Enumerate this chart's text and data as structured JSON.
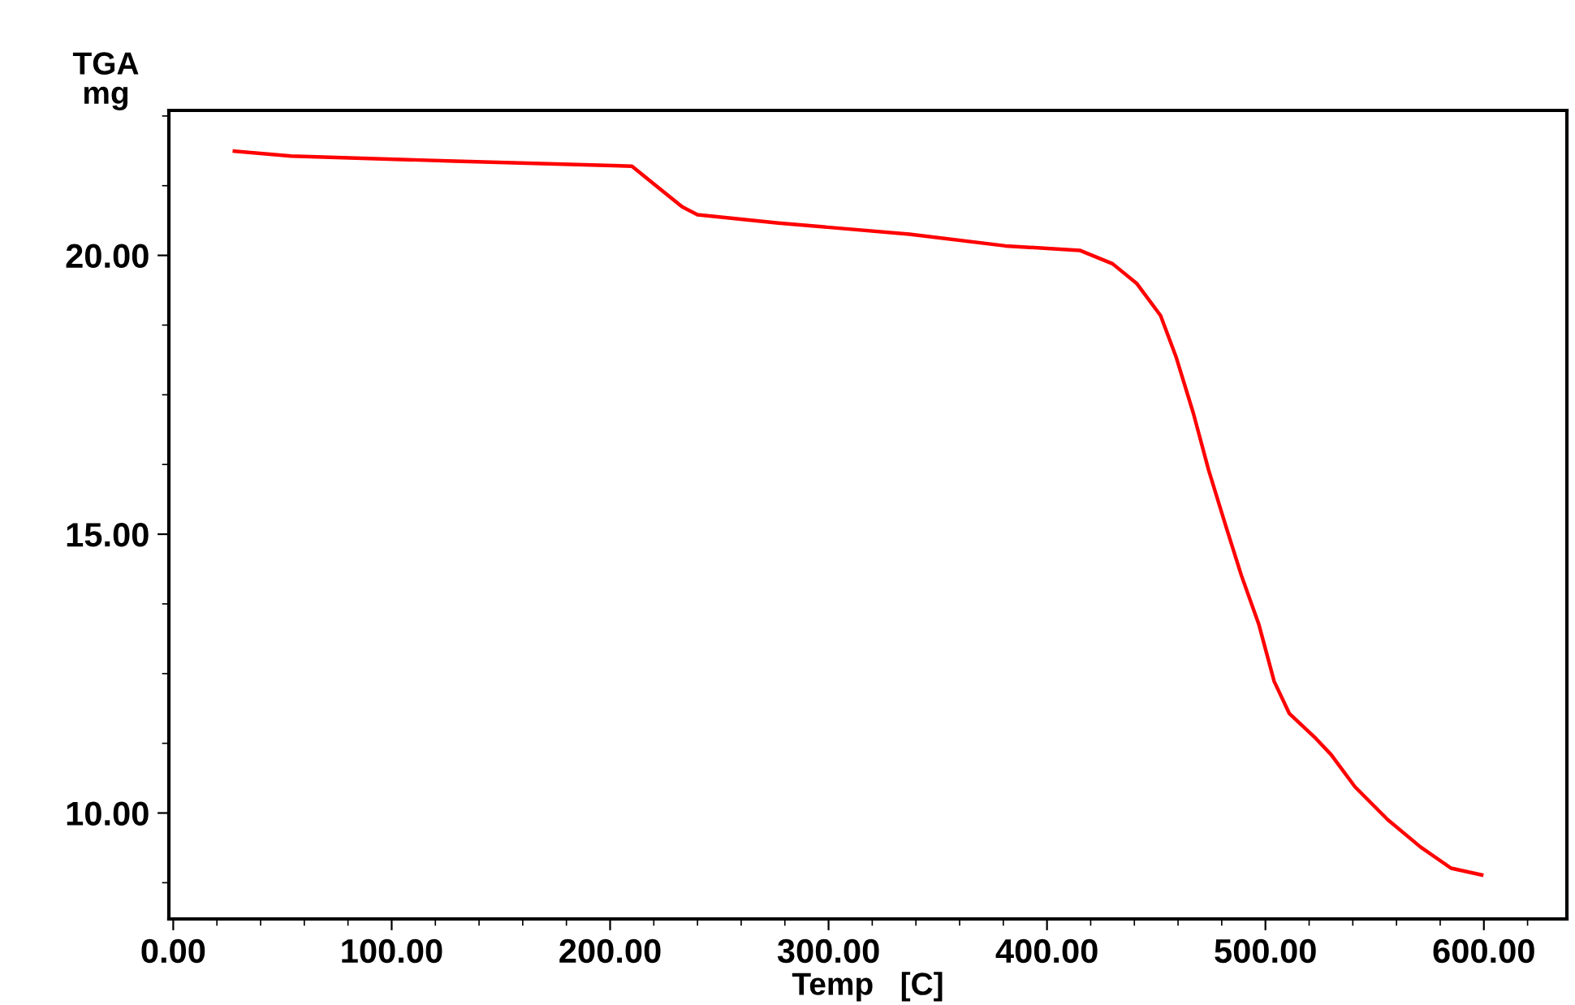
{
  "chart_data": {
    "type": "line",
    "ylabel": "TGA\nmg",
    "xlabel": "Temp   [C]",
    "x": [
      28,
      54,
      129,
      210,
      221,
      233,
      240,
      277,
      337,
      381,
      415,
      430,
      441,
      452,
      459,
      467,
      474,
      482,
      489,
      497,
      504,
      511,
      523,
      530,
      541,
      556,
      571,
      585,
      599
    ],
    "series": [
      {
        "color": "#ff0000",
        "values": [
          21.87,
          21.78,
          21.69,
          21.6,
          21.25,
          20.87,
          20.73,
          20.58,
          20.38,
          20.17,
          20.09,
          19.85,
          19.5,
          18.92,
          18.19,
          17.17,
          16.15,
          15.13,
          14.26,
          13.38,
          12.36,
          11.78,
          11.34,
          11.05,
          10.47,
          9.88,
          9.39,
          9.01,
          8.89
        ]
      }
    ],
    "xlim": [
      -2,
      638
    ],
    "ylim": [
      8.1,
      22.6
    ],
    "xticks": [
      {
        "value": 0,
        "label": "0.00"
      },
      {
        "value": 100,
        "label": "100.00"
      },
      {
        "value": 200,
        "label": "200.00"
      },
      {
        "value": 300,
        "label": "300.00"
      },
      {
        "value": 400,
        "label": "400.00"
      },
      {
        "value": 500,
        "label": "500.00"
      },
      {
        "value": 600,
        "label": "600.00"
      }
    ],
    "yticks": [
      {
        "value": 10,
        "label": "10.00"
      },
      {
        "value": 15,
        "label": "15.00"
      },
      {
        "value": 20,
        "label": "20.00"
      }
    ],
    "grid": false,
    "legend": false,
    "marker": "none",
    "line_style": "solid"
  }
}
